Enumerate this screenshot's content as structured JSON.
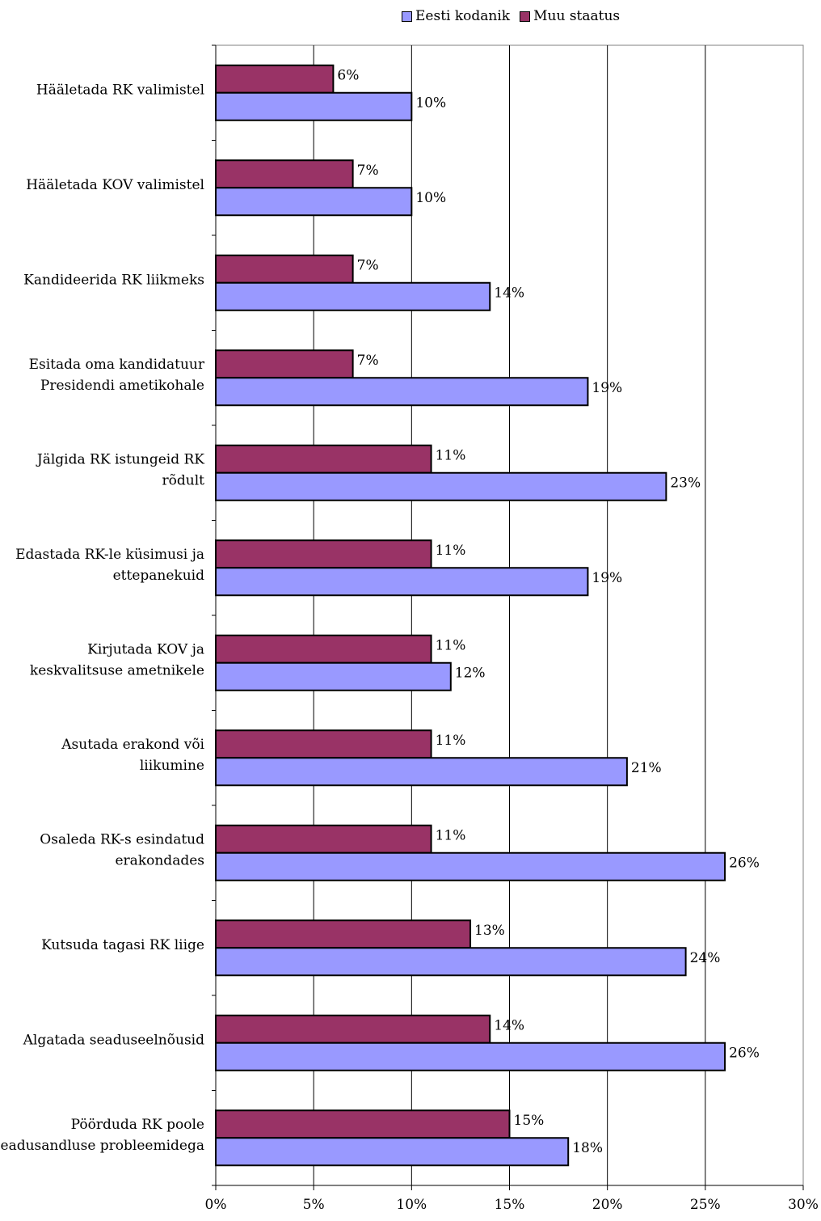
{
  "chart_data": {
    "type": "bar",
    "orientation": "horizontal",
    "categories": [
      "Hääletada RK valimistel",
      "Hääletada KOV valimistel",
      "Kandideerida RK liikmeks",
      "Esitada oma kandidatuur Presidendi ametikohale",
      "Jälgida RK istungeid RK rõdult",
      "Edastada RK-le küsimusi ja ettepanekuid",
      "Kirjutada KOV ja keskvalitsuse ametnikele",
      "Asutada erakond või liikumine",
      "Osaleda RK-s esindatud erakondades",
      "Kutsuda tagasi RK liige",
      "Algatada seaduseelnõusid",
      "Pöörduda RK poole seadusandluse probleemidega"
    ],
    "category_lines": [
      [
        "Hääletada RK valimistel"
      ],
      [
        "Hääletada KOV valimistel"
      ],
      [
        "Kandideerida RK liikmeks"
      ],
      [
        "Esitada oma kandidatuur",
        "Presidendi ametikohale"
      ],
      [
        "Jälgida RK istungeid RK",
        "rõdult"
      ],
      [
        "Edastada RK-le küsimusi ja",
        "ettepanekuid"
      ],
      [
        "Kirjutada KOV ja",
        "keskvalitsuse ametnikele"
      ],
      [
        "Asutada erakond või",
        "liikumine"
      ],
      [
        "Osaleda RK-s esindatud",
        "erakondades"
      ],
      [
        "Kutsuda tagasi RK liige"
      ],
      [
        "Algatada seaduseelnõusid"
      ],
      [
        "Pöörduda RK poole",
        "seadusandluse probleemidega"
      ]
    ],
    "series": [
      {
        "name": "Eesti kodanik",
        "color": "#9999ff",
        "values": [
          10,
          10,
          14,
          19,
          23,
          19,
          12,
          21,
          26,
          24,
          26,
          18
        ]
      },
      {
        "name": "Muu staatus",
        "color": "#993366",
        "values": [
          6,
          7,
          7,
          7,
          11,
          11,
          11,
          11,
          11,
          13,
          14,
          15
        ]
      }
    ],
    "value_suffix": "%",
    "xlim": [
      0,
      30
    ],
    "xticks": [
      0,
      5,
      10,
      15,
      20,
      25,
      30
    ],
    "xtick_labels": [
      "0%",
      "5%",
      "10%",
      "15%",
      "20%",
      "25%",
      "30%"
    ],
    "grid": "vertical",
    "legend_position": "top",
    "title": "",
    "xlabel": "",
    "ylabel": ""
  }
}
